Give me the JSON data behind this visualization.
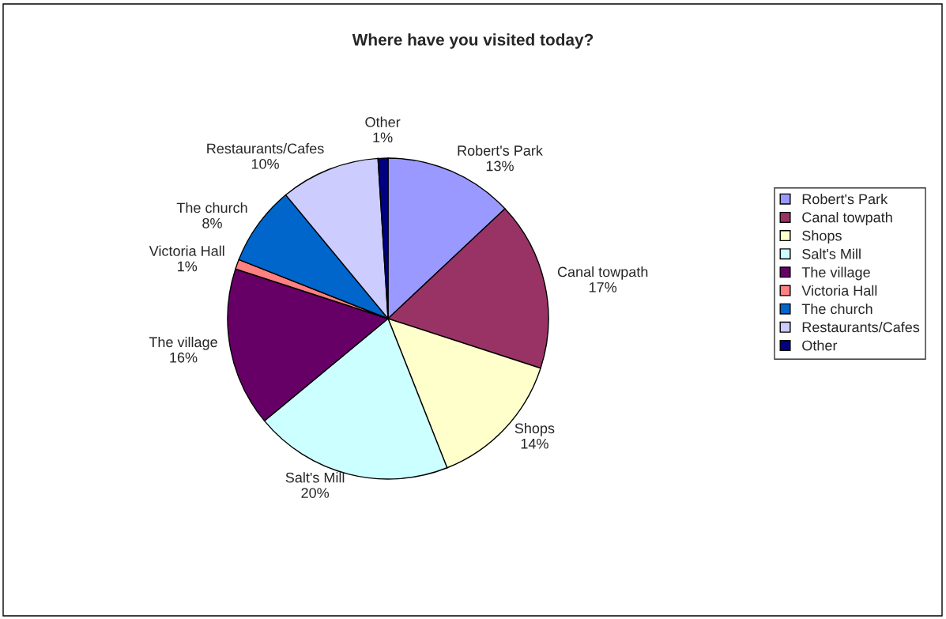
{
  "chart_data": {
    "type": "pie",
    "title": "Where have you visited today?",
    "categories": [
      "Robert's Park",
      "Canal towpath",
      "Shops",
      "Salt's Mill",
      "The village",
      "Victoria Hall",
      "The church",
      "Restaurants/Cafes",
      "Other"
    ],
    "values": [
      13,
      17,
      14,
      20,
      16,
      1,
      8,
      10,
      1
    ],
    "value_labels": [
      "13%",
      "17%",
      "14%",
      "20%",
      "16%",
      "1%",
      "8%",
      "10%",
      "1%"
    ],
    "colors": [
      "#9999ff",
      "#993366",
      "#ffffcc",
      "#ccffff",
      "#660066",
      "#ff8080",
      "#0066cc",
      "#ccccff",
      "#000080"
    ],
    "legend": "right"
  }
}
